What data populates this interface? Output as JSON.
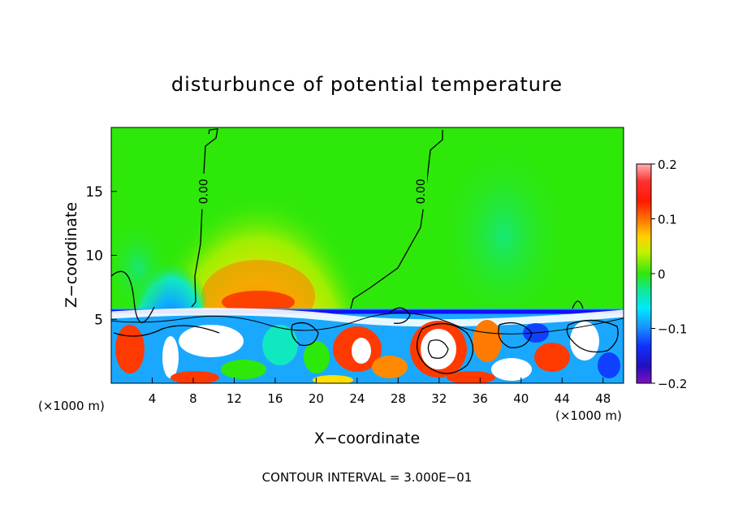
{
  "chart_data": {
    "type": "heatmap",
    "title": "disturbunce of potential temperature",
    "xlabel": "X−coordinate",
    "ylabel": "Z−coordinate",
    "x_unit": "(×1000 m)",
    "x_unit_right": "(×1000 m)",
    "footer": "CONTOUR INTERVAL = 3.000E−01",
    "xlim": [
      0,
      50
    ],
    "ylim": [
      0,
      20
    ],
    "x_ticks": [
      4,
      8,
      12,
      16,
      20,
      24,
      28,
      32,
      36,
      40,
      44,
      48
    ],
    "y_ticks": [
      5,
      10,
      15
    ],
    "colorbar": {
      "range": [
        -0.2,
        0.2
      ],
      "tick_values": [
        0.2,
        0.1,
        0,
        -0.1,
        -0.2
      ],
      "tick_labels": [
        "0.2",
        "0.1",
        "0",
        "−0.1",
        "−0.2"
      ]
    },
    "contour_labels": [
      {
        "text": "0.00",
        "x": 9.0,
        "z": 15.0
      },
      {
        "text": "0.00",
        "x": 30.2,
        "z": 15.0
      }
    ],
    "grid": false
  },
  "colors": {
    "background_field": "#2ee80a",
    "warm_core": "#ff3a00",
    "cold_patch": "#1aa8ff",
    "contour": "#000000"
  }
}
